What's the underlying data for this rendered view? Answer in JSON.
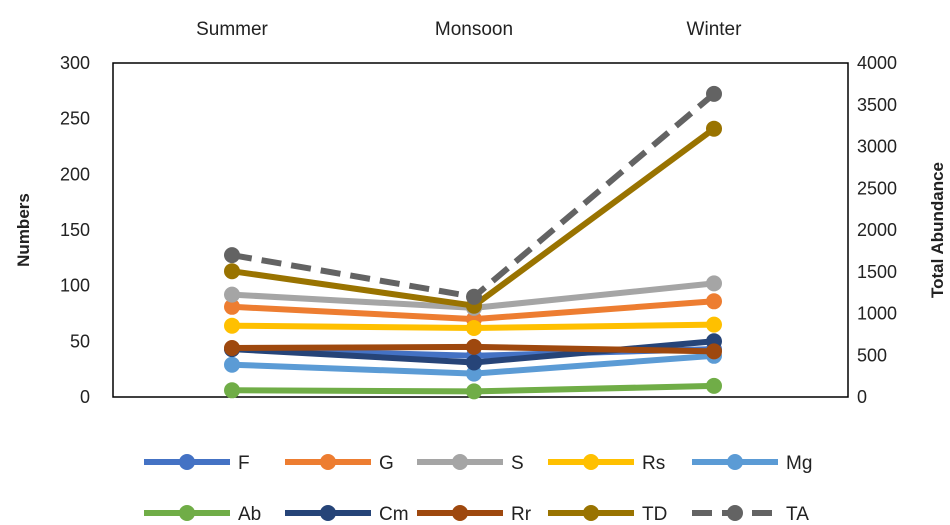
{
  "chart_data": {
    "type": "line",
    "categories": [
      "Summer",
      "Monsoon",
      "Winter"
    ],
    "ylabel": "Numbers",
    "y2label": "Total Abundance",
    "ylim": [
      0,
      300
    ],
    "yticks": [
      0,
      50,
      100,
      150,
      200,
      250,
      300
    ],
    "y2lim": [
      0,
      4000
    ],
    "y2ticks": [
      0,
      500,
      1000,
      1500,
      2000,
      2500,
      3000,
      3500,
      4000
    ],
    "category_axis_position": "top",
    "grid": false,
    "legend_position": "bottom",
    "series": [
      {
        "name": "F",
        "axis": "left",
        "color": "#4472C4",
        "dashed": false,
        "values": [
          43,
          37,
          43
        ]
      },
      {
        "name": "G",
        "axis": "left",
        "color": "#ED7D31",
        "dashed": false,
        "values": [
          81,
          70,
          86
        ]
      },
      {
        "name": "S",
        "axis": "left",
        "color": "#A5A5A5",
        "dashed": false,
        "values": [
          92,
          80,
          102
        ]
      },
      {
        "name": "Rs",
        "axis": "left",
        "color": "#FFC000",
        "dashed": false,
        "values": [
          64,
          62,
          65
        ]
      },
      {
        "name": "Mg",
        "axis": "left",
        "color": "#5B9BD5",
        "dashed": false,
        "values": [
          29,
          21,
          37
        ]
      },
      {
        "name": "Ab",
        "axis": "left",
        "color": "#70AD47",
        "dashed": false,
        "values": [
          6,
          5,
          10
        ]
      },
      {
        "name": "Cm",
        "axis": "left",
        "color": "#264478",
        "dashed": false,
        "values": [
          43,
          31,
          50
        ]
      },
      {
        "name": "Rr",
        "axis": "left",
        "color": "#9E480E",
        "dashed": false,
        "values": [
          44,
          45,
          41
        ]
      },
      {
        "name": "TD",
        "axis": "left",
        "color": "#997300",
        "dashed": false,
        "values": [
          113,
          82,
          241
        ]
      },
      {
        "name": "TA",
        "axis": "right",
        "color": "#636363",
        "dashed": true,
        "values": [
          1700,
          1200,
          3630
        ]
      }
    ]
  }
}
